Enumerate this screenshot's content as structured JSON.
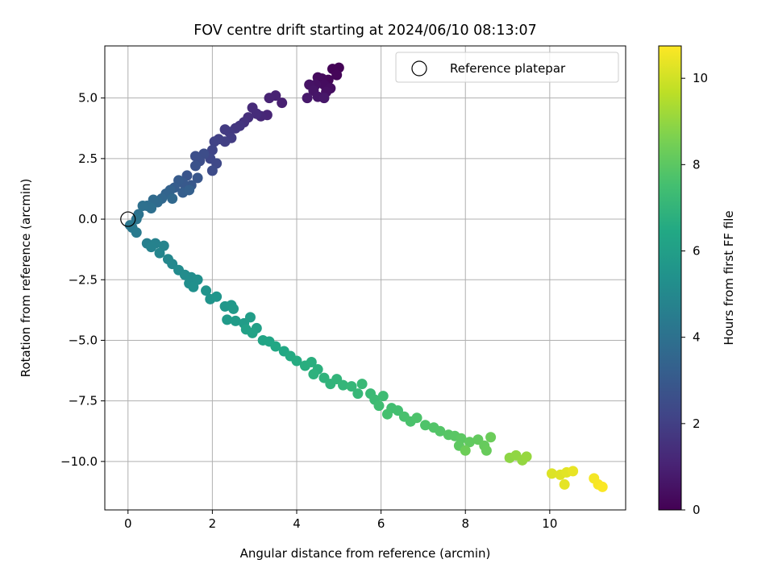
{
  "chart_data": {
    "type": "scatter",
    "title": "FOV centre drift starting at 2024/06/10 08:13:07",
    "xlabel": "Angular distance from reference (arcmin)",
    "ylabel": "Rotation from reference (arcmin)",
    "xlim": [
      -0.55,
      11.8
    ],
    "ylim": [
      -12.0,
      7.15
    ],
    "xticks": [
      0,
      2,
      4,
      6,
      8,
      10
    ],
    "yticks": [
      -10.0,
      -7.5,
      -5.0,
      -2.5,
      0.0,
      2.5,
      5.0
    ],
    "xtick_labels": [
      "0",
      "2",
      "4",
      "6",
      "8",
      "10"
    ],
    "ytick_labels": [
      "−10.0",
      "−7.5",
      "−5.0",
      "−2.5",
      "0.0",
      "2.5",
      "5.0"
    ],
    "grid": true,
    "legend": {
      "placement": "top-right",
      "entries": [
        "Reference platepar"
      ]
    },
    "reference_point": {
      "x": 0,
      "y": 0
    },
    "colorbar": {
      "label": "Hours from first FF file",
      "range": [
        0,
        10.75
      ],
      "ticks": [
        0,
        2,
        4,
        6,
        8,
        10
      ],
      "tick_labels": [
        "0",
        "2",
        "4",
        "6",
        "8",
        "10"
      ],
      "colormap": "viridis"
    },
    "series": [
      {
        "columns": [
          "x",
          "y",
          "hours"
        ],
        "points": [
          [
            5.0,
            6.25,
            0.05
          ],
          [
            4.85,
            6.2,
            0.1
          ],
          [
            4.95,
            5.95,
            0.15
          ],
          [
            4.75,
            5.75,
            0.2
          ],
          [
            4.6,
            5.8,
            0.25
          ],
          [
            4.5,
            5.85,
            0.3
          ],
          [
            4.65,
            5.55,
            0.35
          ],
          [
            4.8,
            5.4,
            0.4
          ],
          [
            4.7,
            5.25,
            0.45
          ],
          [
            4.45,
            5.55,
            0.5
          ],
          [
            4.3,
            5.55,
            0.55
          ],
          [
            4.4,
            5.3,
            0.6
          ],
          [
            4.5,
            5.05,
            0.65
          ],
          [
            4.65,
            5.0,
            0.7
          ],
          [
            4.25,
            5.0,
            0.75
          ],
          [
            3.65,
            4.8,
            0.95
          ],
          [
            3.5,
            5.1,
            1.0
          ],
          [
            3.35,
            5.0,
            1.05
          ],
          [
            3.3,
            4.3,
            1.15
          ],
          [
            3.15,
            4.25,
            1.2
          ],
          [
            2.95,
            4.6,
            1.3
          ],
          [
            3.05,
            4.35,
            1.35
          ],
          [
            2.85,
            4.2,
            1.45
          ],
          [
            2.75,
            4.0,
            1.55
          ],
          [
            2.65,
            3.85,
            1.65
          ],
          [
            2.55,
            3.75,
            1.7
          ],
          [
            2.4,
            3.6,
            1.8
          ],
          [
            2.3,
            3.7,
            1.85
          ],
          [
            2.45,
            3.35,
            1.9
          ],
          [
            2.3,
            3.2,
            2.0
          ],
          [
            2.15,
            3.3,
            2.05
          ],
          [
            2.05,
            3.2,
            2.1
          ],
          [
            2.0,
            2.85,
            2.2
          ],
          [
            1.95,
            2.5,
            2.3
          ],
          [
            2.1,
            2.3,
            2.35
          ],
          [
            2.0,
            2.0,
            2.45
          ],
          [
            1.8,
            2.7,
            2.5
          ],
          [
            1.7,
            2.4,
            2.55
          ],
          [
            1.6,
            2.6,
            2.6
          ],
          [
            1.6,
            2.2,
            2.7
          ],
          [
            1.4,
            1.8,
            2.8
          ],
          [
            1.65,
            1.7,
            2.85
          ],
          [
            1.5,
            1.4,
            2.95
          ],
          [
            1.3,
            1.5,
            3.0
          ],
          [
            1.2,
            1.6,
            3.05
          ],
          [
            1.1,
            1.3,
            3.15
          ],
          [
            1.3,
            1.1,
            3.2
          ],
          [
            1.45,
            1.2,
            3.25
          ],
          [
            1.0,
            1.2,
            3.35
          ],
          [
            0.9,
            1.05,
            3.45
          ],
          [
            0.8,
            0.85,
            3.55
          ],
          [
            1.05,
            0.85,
            3.6
          ],
          [
            0.7,
            0.7,
            3.7
          ],
          [
            0.6,
            0.8,
            3.75
          ],
          [
            0.45,
            0.55,
            3.85
          ],
          [
            0.55,
            0.45,
            3.9
          ],
          [
            0.35,
            0.55,
            3.95
          ],
          [
            0.25,
            0.2,
            4.05
          ],
          [
            0.2,
            0.0,
            4.15
          ],
          [
            0.05,
            -0.25,
            4.25
          ],
          [
            0.1,
            -0.35,
            4.3
          ],
          [
            0.2,
            -0.55,
            4.4
          ],
          [
            0.45,
            -1.0,
            4.6
          ],
          [
            0.65,
            -1.0,
            4.7
          ],
          [
            0.55,
            -1.15,
            4.75
          ],
          [
            0.85,
            -1.1,
            4.8
          ],
          [
            0.75,
            -1.4,
            4.85
          ],
          [
            0.95,
            -1.65,
            4.95
          ],
          [
            1.05,
            -1.85,
            5.0
          ],
          [
            1.2,
            -2.1,
            5.1
          ],
          [
            1.35,
            -2.3,
            5.15
          ],
          [
            1.5,
            -2.4,
            5.2
          ],
          [
            1.45,
            -2.65,
            5.25
          ],
          [
            1.65,
            -2.5,
            5.3
          ],
          [
            1.55,
            -2.8,
            5.35
          ],
          [
            1.85,
            -2.95,
            5.45
          ],
          [
            1.95,
            -3.3,
            5.5
          ],
          [
            2.1,
            -3.2,
            5.55
          ],
          [
            2.3,
            -3.6,
            5.65
          ],
          [
            2.45,
            -3.55,
            5.7
          ],
          [
            2.5,
            -3.7,
            5.75
          ],
          [
            2.35,
            -4.15,
            5.8
          ],
          [
            2.55,
            -4.2,
            5.85
          ],
          [
            2.75,
            -4.3,
            5.9
          ],
          [
            2.9,
            -4.05,
            5.95
          ],
          [
            3.05,
            -4.5,
            6.05
          ],
          [
            2.8,
            -4.55,
            6.1
          ],
          [
            2.95,
            -4.7,
            6.15
          ],
          [
            3.2,
            -5.0,
            6.25
          ],
          [
            3.35,
            -5.05,
            6.3
          ],
          [
            3.5,
            -5.25,
            6.4
          ],
          [
            3.7,
            -5.45,
            6.45
          ],
          [
            3.85,
            -5.65,
            6.55
          ],
          [
            4.0,
            -5.85,
            6.6
          ],
          [
            4.2,
            -6.05,
            6.7
          ],
          [
            4.35,
            -5.9,
            6.75
          ],
          [
            4.5,
            -6.2,
            6.8
          ],
          [
            4.4,
            -6.4,
            6.85
          ],
          [
            4.65,
            -6.55,
            6.9
          ],
          [
            4.8,
            -6.8,
            6.95
          ],
          [
            4.95,
            -6.6,
            7.0
          ],
          [
            5.1,
            -6.85,
            7.05
          ],
          [
            5.3,
            -6.9,
            7.1
          ],
          [
            5.45,
            -7.2,
            7.15
          ],
          [
            5.55,
            -6.8,
            7.2
          ],
          [
            5.75,
            -7.2,
            7.25
          ],
          [
            5.85,
            -7.45,
            7.3
          ],
          [
            6.05,
            -7.3,
            7.35
          ],
          [
            5.95,
            -7.7,
            7.4
          ],
          [
            6.25,
            -7.8,
            7.45
          ],
          [
            6.4,
            -7.9,
            7.5
          ],
          [
            6.15,
            -8.05,
            7.55
          ],
          [
            6.55,
            -8.15,
            7.6
          ],
          [
            6.7,
            -8.35,
            7.65
          ],
          [
            6.85,
            -8.2,
            7.7
          ],
          [
            7.05,
            -8.5,
            7.75
          ],
          [
            7.25,
            -8.6,
            7.8
          ],
          [
            7.4,
            -8.75,
            7.85
          ],
          [
            7.6,
            -8.9,
            7.9
          ],
          [
            7.75,
            -8.95,
            7.95
          ],
          [
            7.9,
            -9.05,
            8.0
          ],
          [
            7.85,
            -9.35,
            8.05
          ],
          [
            8.1,
            -9.2,
            8.1
          ],
          [
            8.3,
            -9.1,
            8.15
          ],
          [
            8.45,
            -9.35,
            8.2
          ],
          [
            8.5,
            -9.55,
            8.25
          ],
          [
            8.6,
            -9.0,
            8.3
          ],
          [
            8.0,
            -9.55,
            8.35
          ],
          [
            9.05,
            -9.85,
            8.9
          ],
          [
            9.2,
            -9.75,
            8.95
          ],
          [
            9.35,
            -9.95,
            9.0
          ],
          [
            9.45,
            -9.8,
            9.05
          ],
          [
            10.05,
            -10.5,
            10.2
          ],
          [
            10.25,
            -10.55,
            10.25
          ],
          [
            10.4,
            -10.45,
            10.3
          ],
          [
            10.35,
            -10.95,
            10.35
          ],
          [
            10.55,
            -10.4,
            10.4
          ],
          [
            11.05,
            -10.7,
            10.6
          ],
          [
            11.15,
            -10.95,
            10.65
          ],
          [
            11.25,
            -11.05,
            10.7
          ]
        ]
      }
    ]
  }
}
